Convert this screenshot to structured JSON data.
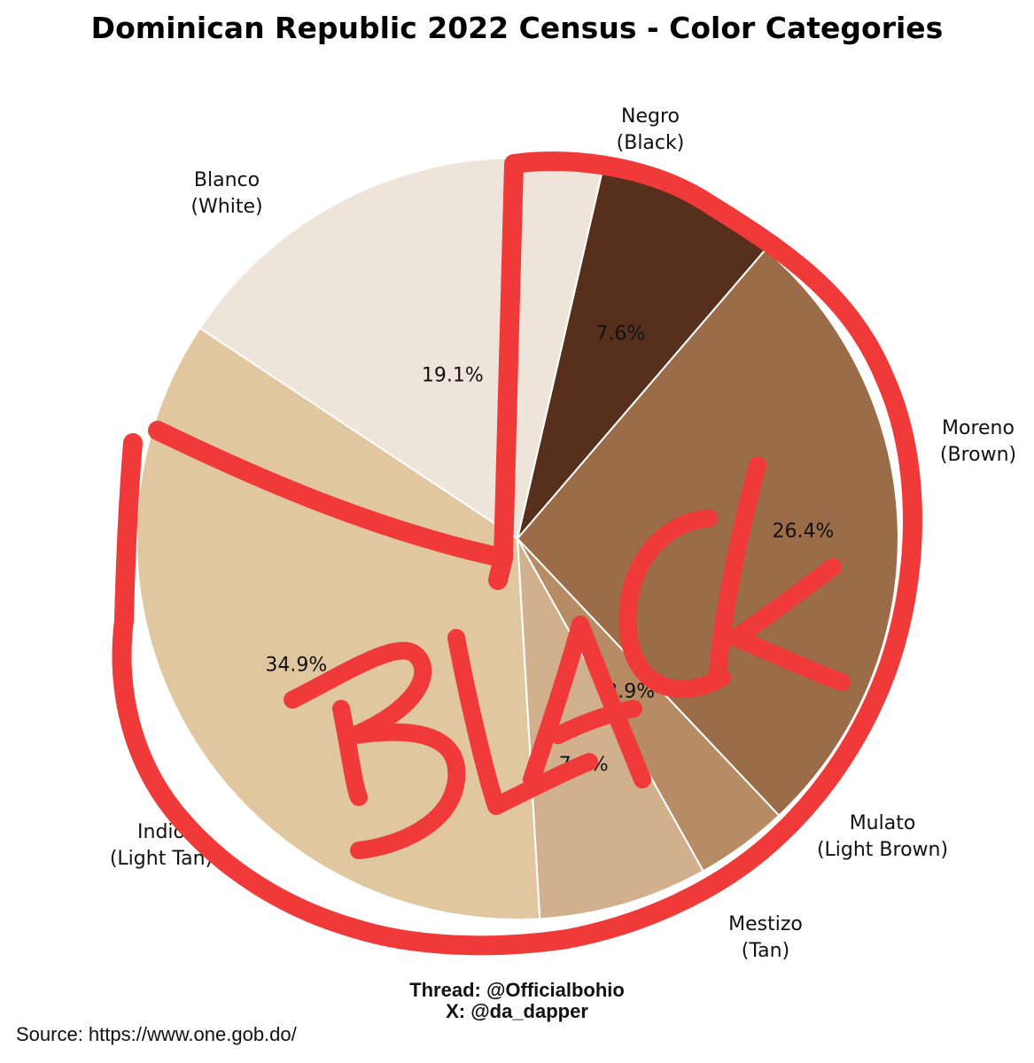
{
  "chart_data": {
    "type": "pie",
    "title": "Dominican Republic 2022 Census - Color Categories",
    "slices": [
      {
        "label": "Negro",
        "sublabel": "(Black)",
        "value": 7.6,
        "display": "7.6%",
        "color": "#56301d"
      },
      {
        "label": "Moreno",
        "sublabel": "(Brown)",
        "value": 26.4,
        "display": "26.4%",
        "color": "#9a6c48"
      },
      {
        "label": "Mulato",
        "sublabel": "(Light Brown)",
        "value": 3.9,
        "display": "3.9%",
        "color": "#b78b63"
      },
      {
        "label": "Mestizo",
        "sublabel": "(Tan)",
        "value": 7.1,
        "display": "7.1%",
        "color": "#d1b08d"
      },
      {
        "label": "Indio",
        "sublabel": "(Light Tan)",
        "value": 34.9,
        "display": "34.9%",
        "color": "#e0c7a0"
      },
      {
        "label": "Blanco",
        "sublabel": "(White)",
        "value": 19.1,
        "display": "19.1%",
        "color": "#efe4d9"
      }
    ]
  },
  "annotation": {
    "handwritten_text": "BLACK",
    "color": "#f03a3a"
  },
  "credits": {
    "thread": "Thread: @Officialbohio",
    "x": "X: @da_dapper"
  },
  "source": "Source: https://www.one.gob.do/"
}
